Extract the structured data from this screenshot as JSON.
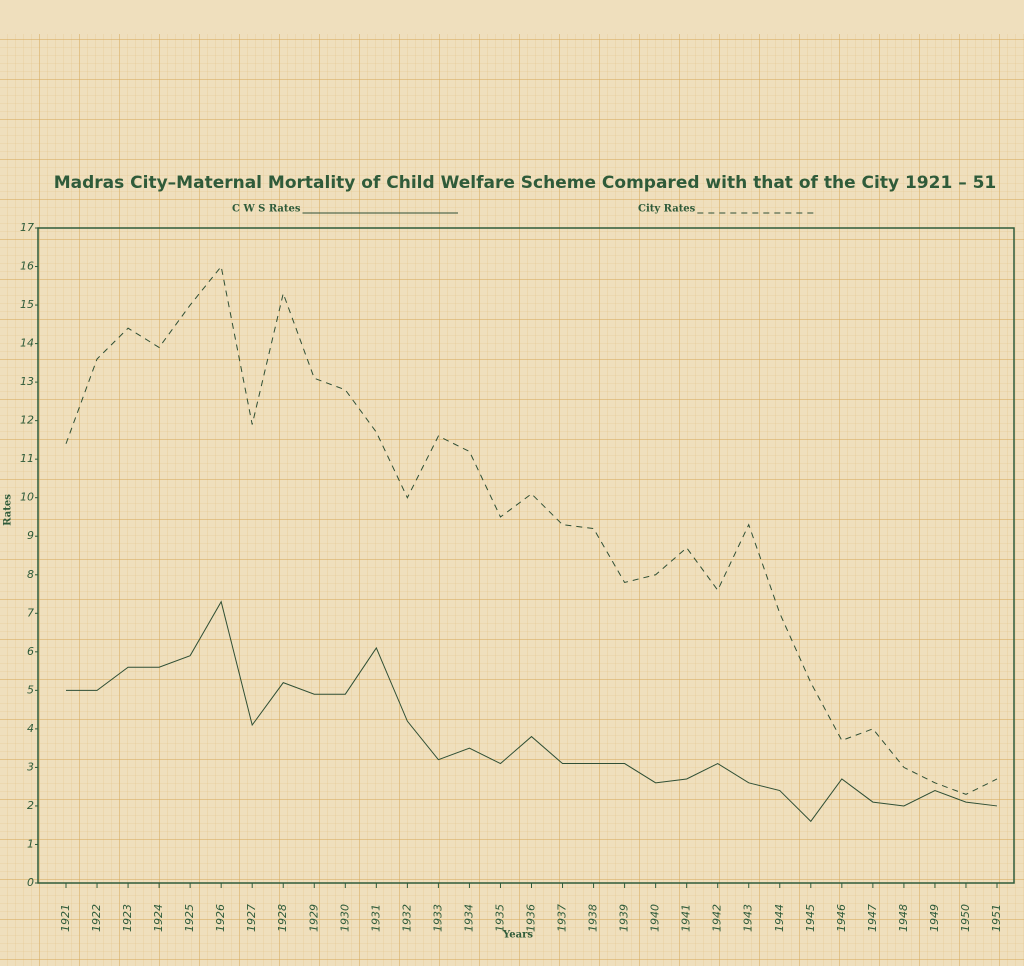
{
  "chart_data": {
    "type": "line",
    "title": "Madras City–Maternal Mortality of Child Welfare Scheme Compared with that of the City 1921 – 51",
    "x_label": "Years",
    "y_label": "Rates",
    "categories": [
      "1921",
      "1922",
      "1923",
      "1924",
      "1925",
      "1926",
      "1927",
      "1928",
      "1929",
      "1930",
      "1931",
      "1932",
      "1933",
      "1934",
      "1935",
      "1936",
      "1937",
      "1938",
      "1939",
      "1940",
      "1941",
      "1942",
      "1943",
      "1944",
      "1945",
      "1946",
      "1947",
      "1948",
      "1949",
      "1950",
      "1951"
    ],
    "series": [
      {
        "name": "C W S Rates",
        "color": "#2f4f35",
        "dash": "none",
        "values": [
          5.0,
          5.0,
          5.6,
          5.6,
          5.9,
          7.3,
          4.1,
          5.2,
          4.9,
          4.9,
          6.1,
          4.2,
          3.2,
          3.5,
          3.1,
          3.8,
          3.1,
          3.1,
          3.1,
          2.6,
          2.7,
          3.1,
          2.6,
          2.4,
          1.6,
          2.7,
          2.1,
          2.0,
          2.4,
          2.1,
          2.0
        ]
      },
      {
        "name": "City Rates",
        "color": "#2f4f35",
        "dash": "6,5",
        "values": [
          11.4,
          13.6,
          14.4,
          13.9,
          15.0,
          16.0,
          11.9,
          15.3,
          13.1,
          12.8,
          11.7,
          10.0,
          11.6,
          11.2,
          9.5,
          10.1,
          9.3,
          9.2,
          7.8,
          8.0,
          8.7,
          7.6,
          9.3,
          7.0,
          5.2,
          3.7,
          4.0,
          3.0,
          2.6,
          2.3,
          2.7
        ]
      }
    ],
    "ylim": [
      0,
      17
    ],
    "yticks": [
      0,
      1,
      2,
      3,
      4,
      5,
      6,
      7,
      8,
      9,
      10,
      11,
      12,
      13,
      14,
      15,
      16,
      17
    ],
    "grid": false
  }
}
